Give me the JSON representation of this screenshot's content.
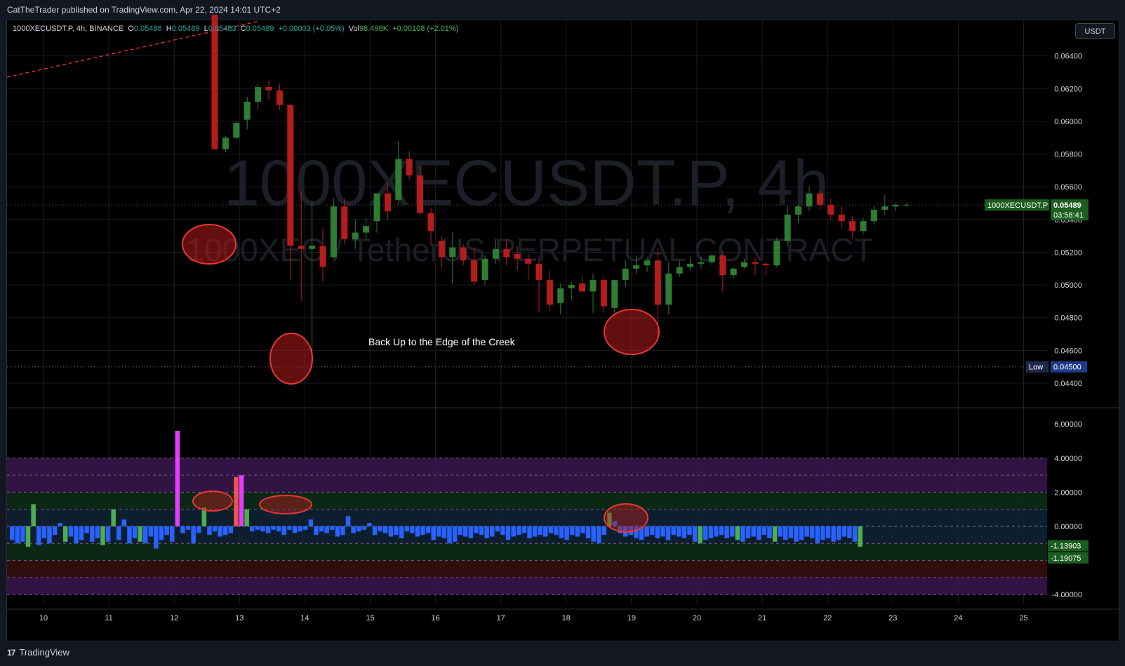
{
  "header": {
    "publisher": "CatTheTrader published on TradingView.com, Apr 22, 2024 14:01 UTC+2"
  },
  "legend": {
    "symbol": "1000XECUSDT.P, 4h, BINANCE",
    "o_label": "O",
    "o": "0.05486",
    "h_label": "H",
    "h": "0.05489",
    "l_label": "L",
    "l": "0.05483",
    "c_label": "C",
    "c": "0.05489",
    "change": "+0.00003 (+0.05%)",
    "vol_label": "Vol",
    "vol": "98.498K",
    "vol_change": "+0.00108 (+2.01%)"
  },
  "currency": "USDT",
  "watermark": {
    "line1": "1000XECUSDT.P, 4h",
    "line2": "1000XEC / TetherUS PERPETUAL CONTRACT"
  },
  "annotation_text": "Back Up to the Edge of the Creek",
  "footer": {
    "brand": "TradingView",
    "logo": "17"
  },
  "colors": {
    "up": "#2e7d32",
    "down": "#b71c1c",
    "marker": "#e53935",
    "magenta": "#e040fb",
    "blue": "#2962ff",
    "green": "#4caf50"
  },
  "chart_data": [
    {
      "type": "candlestick",
      "yticks": [
        "0.06400",
        "0.06200",
        "0.06000",
        "0.05800",
        "0.05600",
        "0.05400",
        "0.05200",
        "0.05000",
        "0.04800",
        "0.04600",
        "0.04400"
      ],
      "ylim": [
        0.0434,
        0.066
      ],
      "x_labels": [
        "10",
        "11",
        "12",
        "13",
        "14",
        "15",
        "16",
        "17",
        "18",
        "19",
        "20",
        "21",
        "22",
        "23",
        "24",
        "25"
      ],
      "last_price_label": "1000XECUSDT.P",
      "last_price": "0.05489",
      "countdown": "03:58:41",
      "low_label": "Low",
      "low_value": "0.04500",
      "candles": [
        [
          0.0665,
          0.0665,
          0.0583,
          0.0583
        ],
        [
          0.0583,
          0.0591,
          0.0581,
          0.059
        ],
        [
          0.059,
          0.06,
          0.0589,
          0.0599
        ],
        [
          0.0601,
          0.0615,
          0.0595,
          0.0612
        ],
        [
          0.0612,
          0.0623,
          0.0607,
          0.0621
        ],
        [
          0.0621,
          0.0625,
          0.0613,
          0.0619
        ],
        [
          0.0619,
          0.0623,
          0.0607,
          0.061
        ],
        [
          0.061,
          0.0611,
          0.0503,
          0.0524
        ],
        [
          0.0524,
          0.0557,
          0.049,
          0.0522
        ],
        [
          0.0522,
          0.0551,
          0.045,
          0.0524
        ],
        [
          0.0524,
          0.0535,
          0.0502,
          0.0511
        ],
        [
          0.0517,
          0.0553,
          0.0516,
          0.0548
        ],
        [
          0.0548,
          0.0553,
          0.0525,
          0.0528
        ],
        [
          0.0528,
          0.054,
          0.0522,
          0.0532
        ],
        [
          0.0532,
          0.0541,
          0.0528,
          0.0536
        ],
        [
          0.0539,
          0.0556,
          0.0532,
          0.0556
        ],
        [
          0.0556,
          0.0563,
          0.054,
          0.0545
        ],
        [
          0.0552,
          0.0588,
          0.0549,
          0.0577
        ],
        [
          0.0577,
          0.0582,
          0.0564,
          0.0567
        ],
        [
          0.0567,
          0.0573,
          0.0543,
          0.0544
        ],
        [
          0.0544,
          0.0547,
          0.0524,
          0.0533
        ],
        [
          0.0527,
          0.053,
          0.051,
          0.0517
        ],
        [
          0.0517,
          0.0532,
          0.0501,
          0.0523
        ],
        [
          0.0523,
          0.0525,
          0.0512,
          0.0515
        ],
        [
          0.0515,
          0.0523,
          0.05,
          0.0502
        ],
        [
          0.0503,
          0.0518,
          0.05,
          0.0516
        ],
        [
          0.0516,
          0.0528,
          0.0513,
          0.0522
        ],
        [
          0.0522,
          0.0528,
          0.0512,
          0.0517
        ],
        [
          0.0519,
          0.0524,
          0.0509,
          0.0516
        ],
        [
          0.0516,
          0.0519,
          0.0503,
          0.0513
        ],
        [
          0.0513,
          0.0517,
          0.0483,
          0.0503
        ],
        [
          0.0503,
          0.0509,
          0.0484,
          0.0488
        ],
        [
          0.0489,
          0.0501,
          0.0482,
          0.0498
        ],
        [
          0.0498,
          0.0502,
          0.0491,
          0.05
        ],
        [
          0.0501,
          0.0505,
          0.0496,
          0.0496
        ],
        [
          0.0496,
          0.0507,
          0.0483,
          0.0503
        ],
        [
          0.0503,
          0.0505,
          0.0483,
          0.0487
        ],
        [
          0.0486,
          0.0503,
          0.0482,
          0.0503
        ],
        [
          0.0503,
          0.0515,
          0.0499,
          0.051
        ],
        [
          0.051,
          0.0518,
          0.0507,
          0.0512
        ],
        [
          0.0512,
          0.0517,
          0.0508,
          0.0515
        ],
        [
          0.0515,
          0.0523,
          0.0466,
          0.0488
        ],
        [
          0.0488,
          0.0514,
          0.0482,
          0.0507
        ],
        [
          0.0507,
          0.0515,
          0.0505,
          0.0511
        ],
        [
          0.0511,
          0.0517,
          0.0509,
          0.0513
        ],
        [
          0.0513,
          0.0517,
          0.051,
          0.0514
        ],
        [
          0.0514,
          0.0519,
          0.0512,
          0.0518
        ],
        [
          0.0518,
          0.0521,
          0.0496,
          0.0506
        ],
        [
          0.0506,
          0.0511,
          0.0504,
          0.051
        ],
        [
          0.0511,
          0.0516,
          0.051,
          0.0514
        ],
        [
          0.0514,
          0.0517,
          0.0506,
          0.0513
        ],
        [
          0.0513,
          0.0514,
          0.0506,
          0.0512
        ],
        [
          0.0512,
          0.0529,
          0.0511,
          0.0527
        ],
        [
          0.0527,
          0.0549,
          0.0524,
          0.0543
        ],
        [
          0.0543,
          0.0549,
          0.0538,
          0.0548
        ],
        [
          0.0548,
          0.056,
          0.0545,
          0.0556
        ],
        [
          0.0556,
          0.0558,
          0.0546,
          0.0549
        ],
        [
          0.0549,
          0.0553,
          0.054,
          0.0543
        ],
        [
          0.0543,
          0.0548,
          0.0535,
          0.0539
        ],
        [
          0.0539,
          0.0542,
          0.0529,
          0.0533
        ],
        [
          0.0533,
          0.0541,
          0.0531,
          0.0539
        ],
        [
          0.0539,
          0.0548,
          0.0537,
          0.0546
        ],
        [
          0.0546,
          0.0555,
          0.0543,
          0.0548
        ],
        [
          0.0548,
          0.055,
          0.0545,
          0.0549
        ],
        [
          0.0549,
          0.055,
          0.0548,
          0.0549
        ]
      ]
    },
    {
      "type": "bar",
      "yticks": [
        "6.00000",
        "4.00000",
        "2.00000",
        "0.00000",
        "-4.00000"
      ],
      "ylim": [
        -4.6,
        6.6
      ],
      "current_labels": [
        "-1.13903",
        "-1.19075"
      ],
      "bands": [
        [
          4,
          3
        ],
        [
          3,
          2
        ],
        [
          2,
          1
        ],
        [
          1,
          0
        ],
        [
          0,
          -1
        ],
        [
          -1,
          -2
        ],
        [
          -2,
          -3
        ],
        [
          -3,
          -4
        ]
      ],
      "values": [
        -0.8,
        -1.0,
        -0.9,
        -1.2,
        1.3,
        -1.1,
        -0.7,
        -1.0,
        -0.5,
        0.2,
        -0.9,
        -0.6,
        -1.0,
        -0.8,
        -0.4,
        -0.9,
        -0.7,
        -1.1,
        -0.9,
        1.0,
        -0.8,
        0.4,
        -1.0,
        -0.7,
        -0.9,
        -1.0,
        -0.6,
        -1.3,
        -0.8,
        -0.5,
        -0.9,
        5.6,
        -0.4,
        -0.2,
        -1.0,
        -0.4,
        1.1,
        -0.5,
        -0.3,
        -0.6,
        -0.5,
        -0.4,
        2.9,
        3.0,
        1.0,
        -0.3,
        -0.2,
        -0.3,
        -0.4,
        -0.2,
        -0.3,
        -0.5,
        -0.2,
        -0.4,
        -0.3,
        -0.2,
        0.4,
        -0.5,
        -0.3,
        -0.4,
        -0.2,
        -0.6,
        -0.5,
        0.6,
        -0.4,
        -0.3,
        -0.2,
        0.2,
        -0.5,
        -0.3,
        -0.4,
        -0.6,
        -0.5,
        -0.7,
        -0.3,
        -0.4,
        -0.6,
        -0.5,
        -0.4,
        -0.8,
        -0.6,
        -0.7,
        -1.0,
        -0.9,
        -0.5,
        -0.6,
        -0.7,
        -0.4,
        -0.5,
        -0.7,
        -0.6,
        -0.3,
        -0.5,
        -0.8,
        -0.6,
        -0.5,
        -0.4,
        -0.7,
        -0.6,
        -0.5,
        -0.6,
        -0.4,
        -0.5,
        -0.7,
        -0.8,
        -0.5,
        -0.6,
        -0.4,
        -0.7,
        -0.9,
        -1.0,
        -0.5,
        0.8,
        0.3,
        -0.4,
        -0.6,
        -0.5,
        -0.7,
        -0.8,
        -0.6,
        -0.5,
        -0.7,
        -0.6,
        -0.8,
        -0.5,
        -0.6,
        -0.7,
        -0.5,
        -0.9,
        -1.0,
        -0.8,
        -0.7,
        -0.6,
        -0.5,
        -0.7,
        -0.6,
        -0.8,
        -0.9,
        -0.7,
        -0.6,
        -0.8,
        -0.5,
        -0.7,
        -0.9,
        -0.6,
        -0.8,
        -0.7,
        -0.9,
        -0.8,
        -0.6,
        -0.7,
        -1.0,
        -0.8,
        -0.7,
        -0.9,
        -0.8,
        -0.6,
        -0.7,
        -0.9,
        -1.2
      ]
    }
  ]
}
